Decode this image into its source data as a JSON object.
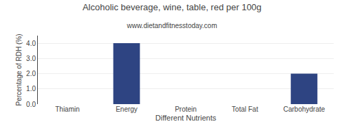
{
  "chart_data": {
    "type": "bar",
    "title": "Alcoholic beverage, wine, table, red per 100g",
    "subtitle": "www.dietandfitnesstoday.com",
    "xlabel": "Different Nutrients",
    "ylabel": "Percentage of RDH (%)",
    "categories": [
      "Thiamin",
      "Energy",
      "Protein",
      "Total Fat",
      "Carbohydrate"
    ],
    "values": [
      0.0,
      4.0,
      0.0,
      0.0,
      2.0
    ],
    "color": "#2e4482",
    "ylim": [
      0,
      4.5
    ],
    "yticks": [
      {
        "value": 0.0,
        "label": "0.0"
      },
      {
        "value": 1.0,
        "label": "1.0"
      },
      {
        "value": 2.0,
        "label": "2.0"
      },
      {
        "value": 3.0,
        "label": "3.0"
      },
      {
        "value": 4.0,
        "label": "4.0"
      }
    ],
    "grid": true
  }
}
